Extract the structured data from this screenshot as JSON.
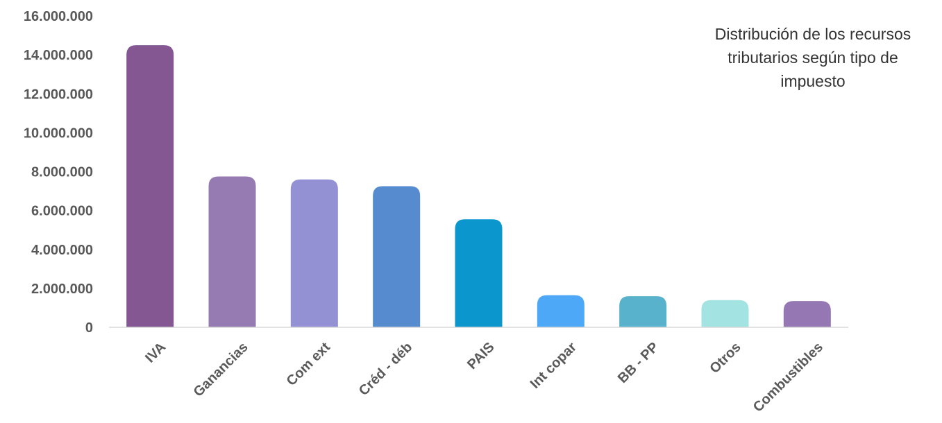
{
  "chart_data": {
    "type": "bar",
    "title": "Distribución de los recursos tributarios según tipo de impuesto",
    "categories": [
      "IVA",
      "Ganancias",
      "Com ext",
      "Créd - déb",
      "PAIS",
      "Int copar",
      "BB - PP",
      "Otros",
      "Combustibles"
    ],
    "values": [
      14500000,
      7750000,
      7600000,
      7250000,
      5550000,
      1650000,
      1600000,
      1400000,
      1350000
    ],
    "colors": [
      "#845793",
      "#957BB2",
      "#9391D3",
      "#568BCF",
      "#0B97CD",
      "#4DA8F7",
      "#58B2CB",
      "#A3E3E2",
      "#9577B3"
    ],
    "yticks": [
      "0",
      "2.000.000",
      "4.000.000",
      "6.000.000",
      "8.000.000",
      "10.000.000",
      "12.000.000",
      "14.000.000",
      "16.000.000"
    ],
    "ylim": [
      0,
      16000000
    ],
    "xlabel": "",
    "ylabel": "",
    "grid": false,
    "legend": "none"
  }
}
